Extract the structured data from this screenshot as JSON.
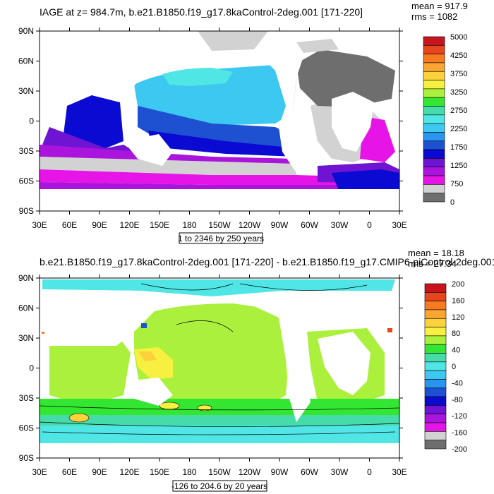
{
  "panels": [
    {
      "title": "IAGE at z= 984.7m, b.e21.B1850.f19_g17.8kaControl-2deg.001 [171-220]",
      "mean_text": "mean = 917.9",
      "rms_text": "rms = 1082",
      "range_text": "1 to 2346 by 250 years",
      "colorbar_labels": [
        "5000",
        "4250",
        "3750",
        "3250",
        "2750",
        "2250",
        "1750",
        "1250",
        "750",
        "0"
      ],
      "colorbar_colors": [
        "#c8141e",
        "#e6461e",
        "#f77a20",
        "#fca632",
        "#fcd23c",
        "#f8f040",
        "#aaf03c",
        "#32e632",
        "#46dcaa",
        "#50e6e6",
        "#3cc8f0",
        "#2896f0",
        "#1e50d2",
        "#0a0ad2",
        "#6e14d2",
        "#aa14dc",
        "#e614e6",
        "#d2d2d2",
        "#6e6e6e"
      ]
    },
    {
      "title": "b.e21.B1850.f19_g17.8kaControl-2deg.001 [171-220] - b.e21.B1850.f19_g17.CMIP6-piControl-2deg.001",
      "mean_text": "mean = 18.18",
      "rms_text": "rms = 27.34",
      "range_text": "-126 to 204.6 by 20 years",
      "colorbar_labels": [
        "200",
        "160",
        "120",
        "80",
        "40",
        "0",
        "-40",
        "-80",
        "-120",
        "-160",
        "-200"
      ],
      "colorbar_colors": [
        "#c8141e",
        "#e6461e",
        "#f77a20",
        "#fca632",
        "#fcd23c",
        "#f8f040",
        "#aaf03c",
        "#32e632",
        "#46dcaa",
        "#50e6e6",
        "#3cc8f0",
        "#2896f0",
        "#1e50d2",
        "#0a0ad2",
        "#6e14d2",
        "#aa14dc",
        "#e614e6",
        "#d2d2d2",
        "#6e6e6e"
      ]
    }
  ],
  "lat_labels": [
    "90N",
    "60N",
    "30N",
    "0",
    "30S",
    "60S",
    "90S"
  ],
  "lon_labels": [
    "30E",
    "60E",
    "90E",
    "120E",
    "150E",
    "180",
    "150W",
    "120W",
    "90W",
    "60W",
    "30W",
    "0",
    "30E"
  ],
  "colors": {
    "land": "#ffffff",
    "missing": "#d2d2d2",
    "dark": "#6e6e6e"
  }
}
